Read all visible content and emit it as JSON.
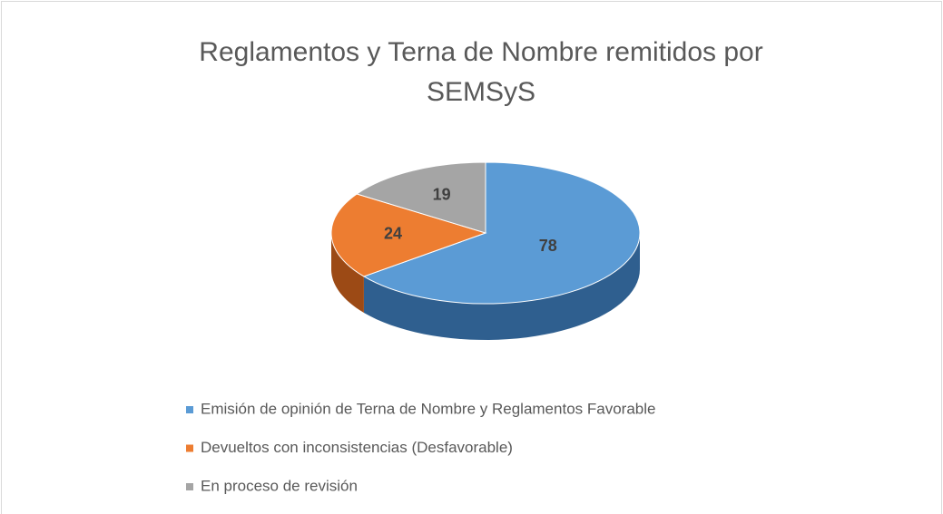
{
  "chart_data": {
    "type": "pie",
    "title": "Reglamentos y Terna de Nombre remitidos por SEMSyS",
    "categories": [
      "Emisión de opinión de Terna de Nombre y Reglamentos Favorable",
      "Devueltos con inconsistencias (Desfavorable)",
      "En proceso de revisión"
    ],
    "values": [
      78,
      24,
      19
    ],
    "colors": [
      "#5b9bd5",
      "#ed7d31",
      "#a5a5a5"
    ],
    "side_colors": [
      "#2f5f8f",
      "#9c4a15",
      "#6e6e6e"
    ],
    "legend": "bottom"
  }
}
